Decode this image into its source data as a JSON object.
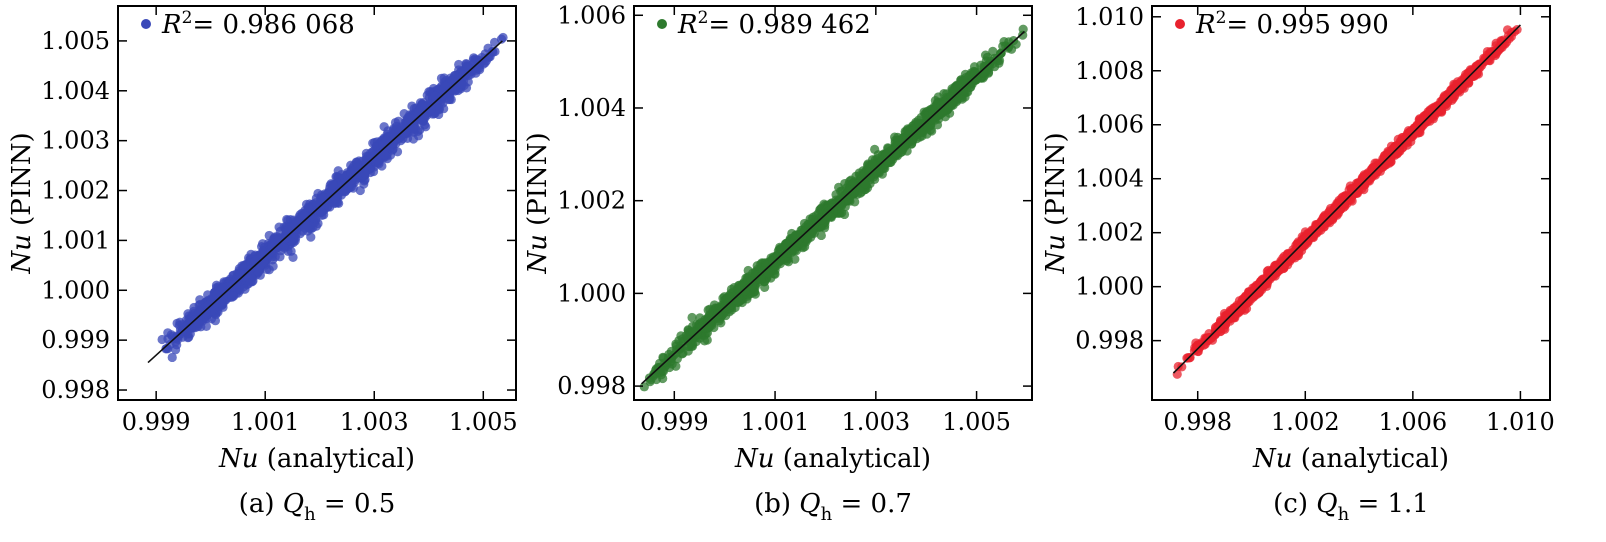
{
  "chart_data": [
    {
      "type": "scatter",
      "caption": {
        "label": "(a)",
        "param": "Q",
        "param_sub": "h",
        "value": "= 0.5"
      },
      "xlabel": {
        "main": "Nu",
        "unit": "(analytical)"
      },
      "ylabel": {
        "main": "Nu",
        "unit": "(PINN)"
      },
      "xlim": [
        0.9983,
        1.0056
      ],
      "ylim": [
        0.9978,
        1.0057
      ],
      "xticks": [
        0.999,
        1.001,
        1.003,
        1.005
      ],
      "xtick_labels": [
        "0.999",
        "1.001",
        "1.003",
        "1.005"
      ],
      "yticks": [
        0.998,
        0.999,
        1.0,
        1.001,
        1.002,
        1.003,
        1.004,
        1.005
      ],
      "ytick_labels": [
        "0.998",
        "0.999",
        "1.000",
        "1.001",
        "1.002",
        "1.003",
        "1.004",
        "1.005"
      ],
      "legend": {
        "symbol": "R",
        "sup": "2",
        "text": "= 0.986 068",
        "position": "top-left"
      },
      "color": "#3a48b8",
      "fit_line": {
        "x": [
          0.99885,
          1.00535
        ],
        "y": [
          0.99855,
          1.005
        ]
      },
      "series": [
        {
          "x_range": [
            0.99885,
            1.00545
          ],
          "y_spread": 0.00022
        }
      ]
    },
    {
      "type": "scatter",
      "caption": {
        "label": "(b)",
        "param": "Q",
        "param_sub": "h",
        "value": "= 0.7"
      },
      "xlabel": {
        "main": "Nu",
        "unit": "(analytical)"
      },
      "ylabel": {
        "main": "Nu",
        "unit": "(PINN)"
      },
      "xlim": [
        0.9982,
        1.0061
      ],
      "ylim": [
        0.9977,
        1.0062
      ],
      "xticks": [
        0.999,
        1.001,
        1.003,
        1.005
      ],
      "xtick_labels": [
        "0.999",
        "1.001",
        "1.003",
        "1.005"
      ],
      "yticks": [
        0.998,
        1.0,
        1.002,
        1.004,
        1.006
      ],
      "ytick_labels": [
        "0.998",
        "1.000",
        "1.002",
        "1.004",
        "1.006"
      ],
      "legend": {
        "symbol": "R",
        "sup": "2",
        "text": "= 0.989 462",
        "position": "top-left"
      },
      "color": "#2e7a2e",
      "fit_line": {
        "x": [
          0.99835,
          1.00595
        ],
        "y": [
          0.99805,
          1.00565
        ]
      },
      "series": [
        {
          "x_range": [
            0.99835,
            1.00595
          ],
          "y_spread": 0.0002
        }
      ]
    },
    {
      "type": "scatter",
      "caption": {
        "label": "(c)",
        "param": "Q",
        "param_sub": "h",
        "value": "= 1.1"
      },
      "xlabel": {
        "main": "Nu",
        "unit": "(analytical)"
      },
      "ylabel": {
        "main": "Nu",
        "unit": "(PINN)"
      },
      "xlim": [
        0.9963,
        1.0111
      ],
      "ylim": [
        0.9958,
        1.0104
      ],
      "xticks": [
        0.998,
        1.002,
        1.006,
        1.01
      ],
      "xtick_labels": [
        "0.998",
        "1.002",
        "1.006",
        "1.010"
      ],
      "yticks": [
        0.998,
        1.0,
        1.002,
        1.004,
        1.006,
        1.008,
        1.01
      ],
      "ytick_labels": [
        "0.998",
        "1.000",
        "1.002",
        "1.004",
        "1.006",
        "1.008",
        "1.010"
      ],
      "legend": {
        "symbol": "R",
        "sup": "2",
        "text": "= 0.995 990",
        "position": "top-left"
      },
      "color": "#e8222e",
      "fit_line": {
        "x": [
          0.9971,
          1.01
        ],
        "y": [
          0.9968,
          1.0097
        ]
      },
      "series": [
        {
          "x_range": [
            0.9971,
            1.0101
          ],
          "y_spread": 0.00018
        }
      ]
    }
  ]
}
